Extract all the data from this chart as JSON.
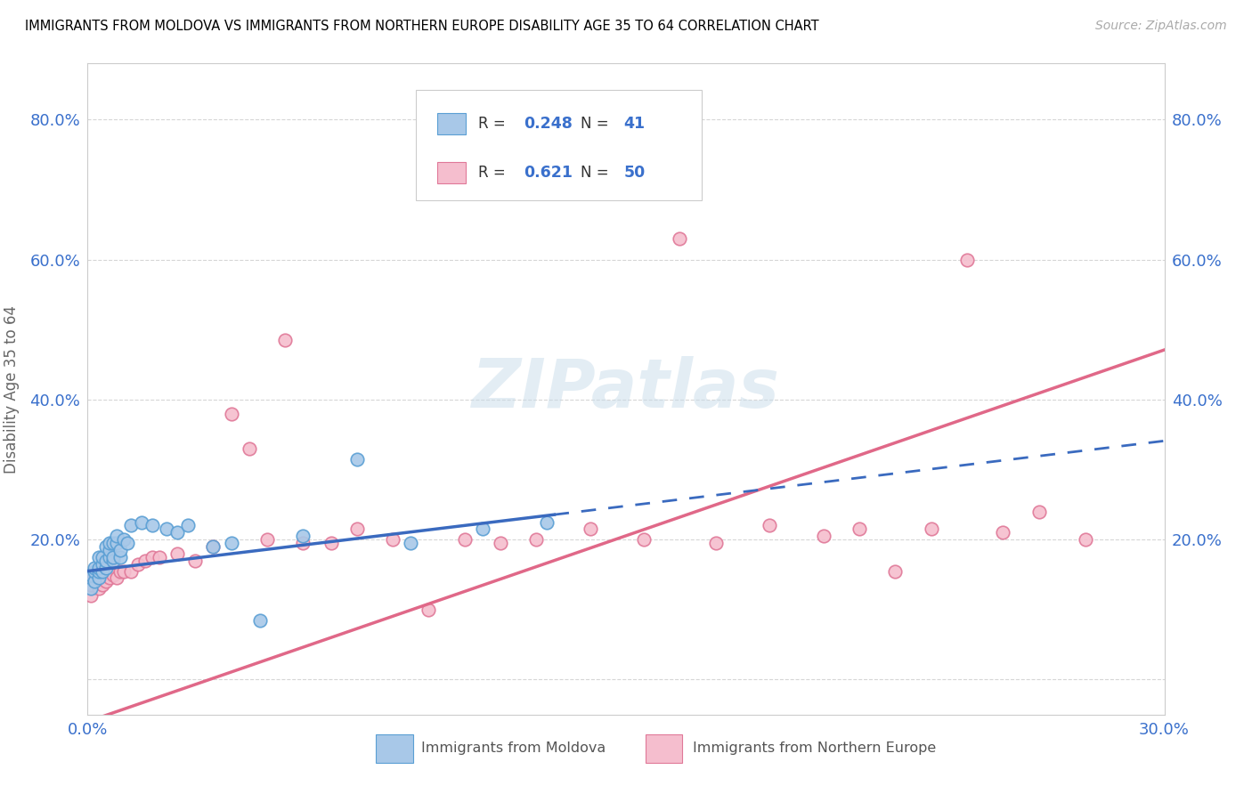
{
  "title": "IMMIGRANTS FROM MOLDOVA VS IMMIGRANTS FROM NORTHERN EUROPE DISABILITY AGE 35 TO 64 CORRELATION CHART",
  "source": "Source: ZipAtlas.com",
  "ylabel_label": "Disability Age 35 to 64",
  "xlim": [
    0.0,
    0.3
  ],
  "ylim": [
    -0.05,
    0.88
  ],
  "xticks": [
    0.0,
    0.05,
    0.1,
    0.15,
    0.2,
    0.25,
    0.3
  ],
  "yticks": [
    0.0,
    0.2,
    0.4,
    0.6,
    0.8
  ],
  "ytick_labels": [
    "",
    "20.0%",
    "40.0%",
    "60.0%",
    "80.0%"
  ],
  "xtick_labels": [
    "0.0%",
    "",
    "",
    "",
    "",
    "",
    "30.0%"
  ],
  "moldova_color": "#a8c8e8",
  "moldova_edge_color": "#5a9fd4",
  "northern_europe_color": "#f5bece",
  "northern_europe_edge_color": "#e07898",
  "trend_moldova_color": "#3a6abf",
  "trend_northern_europe_color": "#e06888",
  "R_moldova": 0.248,
  "N_moldova": 41,
  "R_northern_europe": 0.621,
  "N_northern_europe": 50,
  "watermark": "ZIPatlas",
  "moldova_x": [
    0.001,
    0.001,
    0.002,
    0.002,
    0.002,
    0.003,
    0.003,
    0.003,
    0.003,
    0.004,
    0.004,
    0.004,
    0.005,
    0.005,
    0.005,
    0.006,
    0.006,
    0.006,
    0.007,
    0.007,
    0.007,
    0.008,
    0.008,
    0.009,
    0.009,
    0.01,
    0.011,
    0.012,
    0.015,
    0.018,
    0.022,
    0.025,
    0.028,
    0.035,
    0.04,
    0.048,
    0.06,
    0.075,
    0.09,
    0.11,
    0.128
  ],
  "moldova_y": [
    0.13,
    0.15,
    0.14,
    0.155,
    0.16,
    0.145,
    0.155,
    0.16,
    0.175,
    0.155,
    0.165,
    0.175,
    0.16,
    0.17,
    0.19,
    0.175,
    0.185,
    0.195,
    0.17,
    0.175,
    0.195,
    0.195,
    0.205,
    0.175,
    0.185,
    0.2,
    0.195,
    0.22,
    0.225,
    0.22,
    0.215,
    0.21,
    0.22,
    0.19,
    0.195,
    0.085,
    0.205,
    0.315,
    0.195,
    0.215,
    0.225
  ],
  "northern_europe_x": [
    0.001,
    0.001,
    0.002,
    0.002,
    0.003,
    0.003,
    0.003,
    0.004,
    0.004,
    0.005,
    0.005,
    0.006,
    0.006,
    0.007,
    0.008,
    0.009,
    0.01,
    0.012,
    0.014,
    0.016,
    0.018,
    0.02,
    0.025,
    0.03,
    0.035,
    0.04,
    0.045,
    0.05,
    0.055,
    0.06,
    0.068,
    0.075,
    0.085,
    0.095,
    0.105,
    0.115,
    0.125,
    0.14,
    0.155,
    0.165,
    0.175,
    0.19,
    0.205,
    0.215,
    0.225,
    0.235,
    0.245,
    0.255,
    0.265,
    0.278
  ],
  "northern_europe_y": [
    0.12,
    0.135,
    0.145,
    0.15,
    0.13,
    0.14,
    0.155,
    0.135,
    0.15,
    0.14,
    0.155,
    0.145,
    0.16,
    0.15,
    0.145,
    0.155,
    0.155,
    0.155,
    0.165,
    0.17,
    0.175,
    0.175,
    0.18,
    0.17,
    0.19,
    0.38,
    0.33,
    0.2,
    0.485,
    0.195,
    0.195,
    0.215,
    0.2,
    0.1,
    0.2,
    0.195,
    0.2,
    0.215,
    0.2,
    0.63,
    0.195,
    0.22,
    0.205,
    0.215,
    0.155,
    0.215,
    0.6,
    0.21,
    0.24,
    0.2
  ],
  "trend_ne_intercept": -0.06,
  "trend_ne_slope": 1.77,
  "trend_m_intercept": 0.155,
  "trend_m_slope": 0.62
}
